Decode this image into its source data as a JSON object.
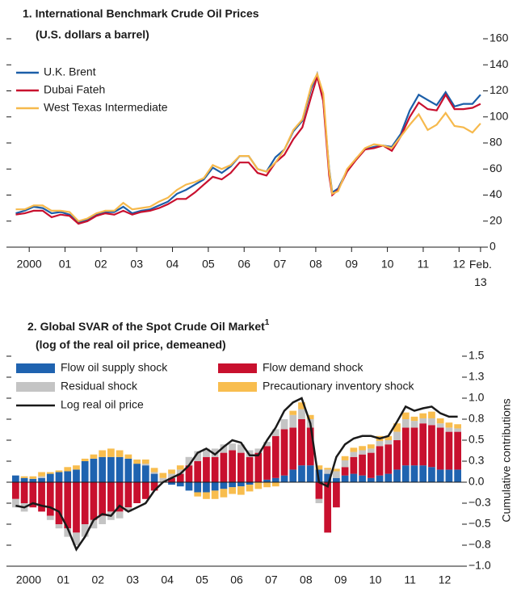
{
  "chart_data": [
    {
      "type": "line",
      "title": "1. International Benchmark Crude Oil Prices",
      "subtitle": "(U.S. dollars a barrel)",
      "x": [
        2000.125,
        2000.375,
        2000.625,
        2000.875,
        2001.125,
        2001.375,
        2001.625,
        2001.875,
        2002.125,
        2002.375,
        2002.625,
        2002.875,
        2003.125,
        2003.375,
        2003.625,
        2003.875,
        2004.125,
        2004.375,
        2004.625,
        2004.875,
        2005.125,
        2005.375,
        2005.625,
        2005.875,
        2006.125,
        2006.375,
        2006.625,
        2006.875,
        2007.125,
        2007.375,
        2007.625,
        2007.875,
        2008.125,
        2008.375,
        2008.54,
        2008.71,
        2008.875,
        2008.96,
        2009.125,
        2009.375,
        2009.625,
        2009.875,
        2010.125,
        2010.375,
        2010.625,
        2010.875,
        2011.125,
        2011.375,
        2011.625,
        2011.875,
        2012.125,
        2012.375,
        2012.625,
        2012.875,
        2013.1
      ],
      "xlim": [
        2000,
        2013.17
      ],
      "xticks": [
        {
          "value": 2000.5,
          "label": "2000"
        },
        {
          "value": 2001.5,
          "label": "01"
        },
        {
          "value": 2002.5,
          "label": "02"
        },
        {
          "value": 2003.5,
          "label": "03"
        },
        {
          "value": 2004.5,
          "label": "04"
        },
        {
          "value": 2005.5,
          "label": "05"
        },
        {
          "value": 2006.5,
          "label": "06"
        },
        {
          "value": 2007.5,
          "label": "07"
        },
        {
          "value": 2008.5,
          "label": "08"
        },
        {
          "value": 2009.5,
          "label": "09"
        },
        {
          "value": 2010.5,
          "label": "10"
        },
        {
          "value": 2011.5,
          "label": "11"
        },
        {
          "value": 2012.5,
          "label": "12"
        },
        {
          "value": 2013.1,
          "label": "Feb. 13"
        }
      ],
      "ylim": [
        0,
        160
      ],
      "yticks": [
        0,
        20,
        40,
        60,
        80,
        100,
        120,
        140,
        160
      ],
      "series": [
        {
          "name": "U.K. Brent",
          "color": "#1b5ea8",
          "values": [
            26,
            28,
            31,
            30,
            26,
            27,
            25,
            19,
            21,
            25,
            27,
            27,
            31,
            26,
            28,
            29,
            32,
            35,
            41,
            44,
            48,
            52,
            61,
            57,
            62,
            70,
            70,
            60,
            58,
            69,
            75,
            89,
            97,
            122,
            133,
            113,
            60,
            42,
            45,
            59,
            68,
            75,
            77,
            78,
            77,
            87,
            105,
            117,
            113,
            109,
            119,
            108,
            110,
            110,
            117
          ]
        },
        {
          "name": "Dubai Fateh",
          "color": "#c8102e",
          "values": [
            25,
            26,
            28,
            28,
            23,
            25,
            24,
            18,
            20,
            24,
            26,
            25,
            28,
            25,
            27,
            28,
            30,
            33,
            37,
            37,
            42,
            48,
            54,
            52,
            57,
            65,
            65,
            57,
            55,
            65,
            71,
            83,
            92,
            116,
            131,
            112,
            55,
            40,
            44,
            58,
            67,
            75,
            76,
            78,
            74,
            85,
            100,
            111,
            106,
            105,
            117,
            106,
            106,
            107,
            110
          ]
        },
        {
          "name": "West Texas Intermediate",
          "color": "#f6b94c",
          "values": [
            29,
            29,
            32,
            32,
            28,
            28,
            27,
            20,
            22,
            26,
            28,
            28,
            34,
            29,
            30,
            31,
            35,
            38,
            44,
            48,
            50,
            53,
            63,
            60,
            63,
            70,
            70,
            60,
            58,
            65,
            75,
            90,
            98,
            124,
            133,
            118,
            59,
            41,
            43,
            60,
            68,
            76,
            79,
            78,
            76,
            85,
            94,
            102,
            90,
            94,
            103,
            93,
            92,
            88,
            95
          ]
        }
      ]
    },
    {
      "type": "bar",
      "title": "2. Global SVAR of the Spot Crude Oil Market",
      "title_note": "1",
      "subtitle": "(log of the real oil price, demeaned)",
      "y_label": "Cumulative contributions",
      "categories": [
        null,
        "2000",
        null,
        null,
        null,
        "01",
        null,
        null,
        null,
        "02",
        null,
        null,
        null,
        "03",
        null,
        null,
        null,
        "04",
        null,
        null,
        null,
        "05",
        null,
        null,
        null,
        "06",
        null,
        null,
        null,
        "07",
        null,
        null,
        null,
        "08",
        null,
        null,
        null,
        "09",
        null,
        null,
        null,
        "10",
        null,
        null,
        null,
        "11",
        null,
        null,
        null,
        "12",
        null,
        null
      ],
      "ylim": [
        -1,
        1.5
      ],
      "yticks": [
        {
          "value": -1,
          "label": "−1.0"
        },
        {
          "value": -0.75,
          "label": "−0.8"
        },
        {
          "value": -0.5,
          "label": "−0.5"
        },
        {
          "value": -0.25,
          "label": "−0.3"
        },
        {
          "value": 0,
          "label": "0.0"
        },
        {
          "value": 0.25,
          "label": "0.3"
        },
        {
          "value": 0.5,
          "label": "0.5"
        },
        {
          "value": 0.75,
          "label": "0.8"
        },
        {
          "value": 1,
          "label": "1.0"
        },
        {
          "value": 1.25,
          "label": "1.3"
        },
        {
          "value": 1.5,
          "label": "1.5"
        }
      ],
      "series": [
        {
          "name": "Flow oil supply shock",
          "color": "#1f63b0",
          "values": [
            0.08,
            0.05,
            0.04,
            0.05,
            0.1,
            0.12,
            0.13,
            0.15,
            0.25,
            0.28,
            0.3,
            0.3,
            0.3,
            0.28,
            0.22,
            0.2,
            0.1,
            0,
            -0.03,
            -0.05,
            -0.1,
            -0.12,
            -0.12,
            -0.1,
            -0.08,
            -0.06,
            -0.05,
            -0.03,
            0,
            0.03,
            0.05,
            0.08,
            0.15,
            0.2,
            0.2,
            0.15,
            0.1,
            0.05,
            0.08,
            0.1,
            0.08,
            0.05,
            0.08,
            0.1,
            0.15,
            0.2,
            0.2,
            0.2,
            0.18,
            0.15,
            0.15,
            0.15
          ]
        },
        {
          "name": "Flow demand shock",
          "color": "#c8102e",
          "values": [
            -0.2,
            -0.25,
            -0.3,
            -0.35,
            -0.4,
            -0.5,
            -0.55,
            -0.6,
            -0.5,
            -0.45,
            -0.4,
            -0.35,
            -0.35,
            -0.3,
            -0.25,
            -0.2,
            -0.1,
            0,
            0.05,
            0.1,
            0.2,
            0.25,
            0.3,
            0.3,
            0.35,
            0.38,
            0.35,
            0.3,
            0.35,
            0.4,
            0.5,
            0.55,
            0.5,
            0.55,
            0.45,
            -0.2,
            -0.6,
            -0.3,
            0.1,
            0.2,
            0.25,
            0.3,
            0.35,
            0.35,
            0.35,
            0.45,
            0.45,
            0.5,
            0.5,
            0.5,
            0.45,
            0.45
          ]
        },
        {
          "name": "Residual shock",
          "color": "#c4c4c4",
          "values": [
            -0.1,
            -0.1,
            0,
            0.02,
            -0.05,
            -0.05,
            -0.1,
            -0.15,
            -0.15,
            -0.1,
            -0.1,
            -0.1,
            -0.08,
            -0.05,
            0,
            0.02,
            0.02,
            0.05,
            0.05,
            0.05,
            0.1,
            0.12,
            0.1,
            0.1,
            0.1,
            0.08,
            0.1,
            0.08,
            0.05,
            0.05,
            0.08,
            0.12,
            0.15,
            0.12,
            0.1,
            -0.05,
            0.05,
            0.08,
            0.08,
            0.06,
            0.05,
            0.05,
            0.06,
            0.05,
            0.1,
            0.1,
            0.08,
            0.06,
            0.08,
            0.05,
            0.05,
            0.04
          ]
        },
        {
          "name": "Precautionary inventory shock",
          "color": "#f8bd4e",
          "values": [
            0,
            0.02,
            0.03,
            0.05,
            0.02,
            0.02,
            0.05,
            0.05,
            0.03,
            0.05,
            0.08,
            0.1,
            0.08,
            0.05,
            0.05,
            0.05,
            0.05,
            0.06,
            0.05,
            0.05,
            0,
            -0.05,
            -0.08,
            -0.1,
            -0.1,
            -0.08,
            -0.1,
            -0.08,
            -0.08,
            -0.06,
            -0.05,
            0,
            0.05,
            0.08,
            0.05,
            0.05,
            0.02,
            0.03,
            0.05,
            0.05,
            0.05,
            0.05,
            0.06,
            0.05,
            0.1,
            0.08,
            0.05,
            0.06,
            0.08,
            0.06,
            0.06,
            0.05
          ]
        },
        {
          "name": "Log real oil price",
          "color": "#1a1a1a",
          "type": "line",
          "values": [
            -0.28,
            -0.3,
            -0.25,
            -0.28,
            -0.3,
            -0.35,
            -0.55,
            -0.8,
            -0.65,
            -0.45,
            -0.38,
            -0.4,
            -0.28,
            -0.35,
            -0.3,
            -0.25,
            -0.1,
            0,
            0.05,
            0.1,
            0.2,
            0.35,
            0.4,
            0.33,
            0.42,
            0.5,
            0.47,
            0.32,
            0.32,
            0.5,
            0.65,
            0.85,
            0.95,
            1,
            0.7,
            0,
            -0.05,
            0.3,
            0.45,
            0.52,
            0.55,
            0.55,
            0.52,
            0.55,
            0.72,
            0.9,
            0.85,
            0.88,
            0.9,
            0.82,
            0.78,
            0.78
          ]
        }
      ]
    }
  ]
}
